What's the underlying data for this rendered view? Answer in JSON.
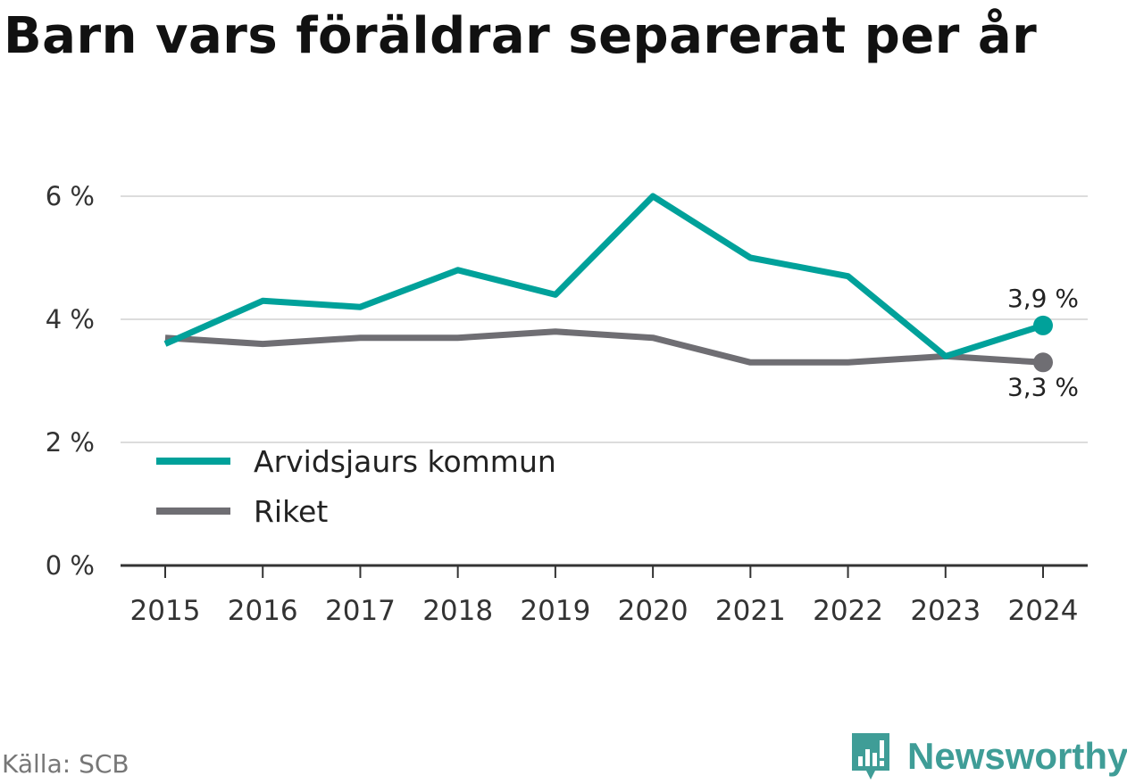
{
  "title": "Barn vars föräldrar separerat per år",
  "source": "Källa: SCB",
  "brand": {
    "name": "Newsworthy",
    "icon": "newsworthy-logo-icon",
    "color": "#3f9d97"
  },
  "chart_data": {
    "type": "line",
    "x": [
      "2015",
      "2016",
      "2017",
      "2018",
      "2019",
      "2020",
      "2021",
      "2022",
      "2023",
      "2024"
    ],
    "y_ticks": [
      0,
      2,
      4,
      6
    ],
    "y_tick_labels": [
      "0 %",
      "2 %",
      "4 %",
      "6 %"
    ],
    "ylim": [
      0,
      6
    ],
    "grid": true,
    "legend_position": "bottom-left",
    "series": [
      {
        "name": "Arvidsjaurs kommun",
        "color": "#00a19a",
        "values": [
          3.6,
          4.3,
          4.2,
          4.8,
          4.4,
          6.0,
          5.0,
          4.7,
          3.4,
          3.9
        ],
        "end_label": "3,9 %"
      },
      {
        "name": "Riket",
        "color": "#6f6e73",
        "values": [
          3.7,
          3.6,
          3.7,
          3.7,
          3.8,
          3.7,
          3.3,
          3.3,
          3.4,
          3.3
        ],
        "end_label": "3,3 %"
      }
    ]
  }
}
